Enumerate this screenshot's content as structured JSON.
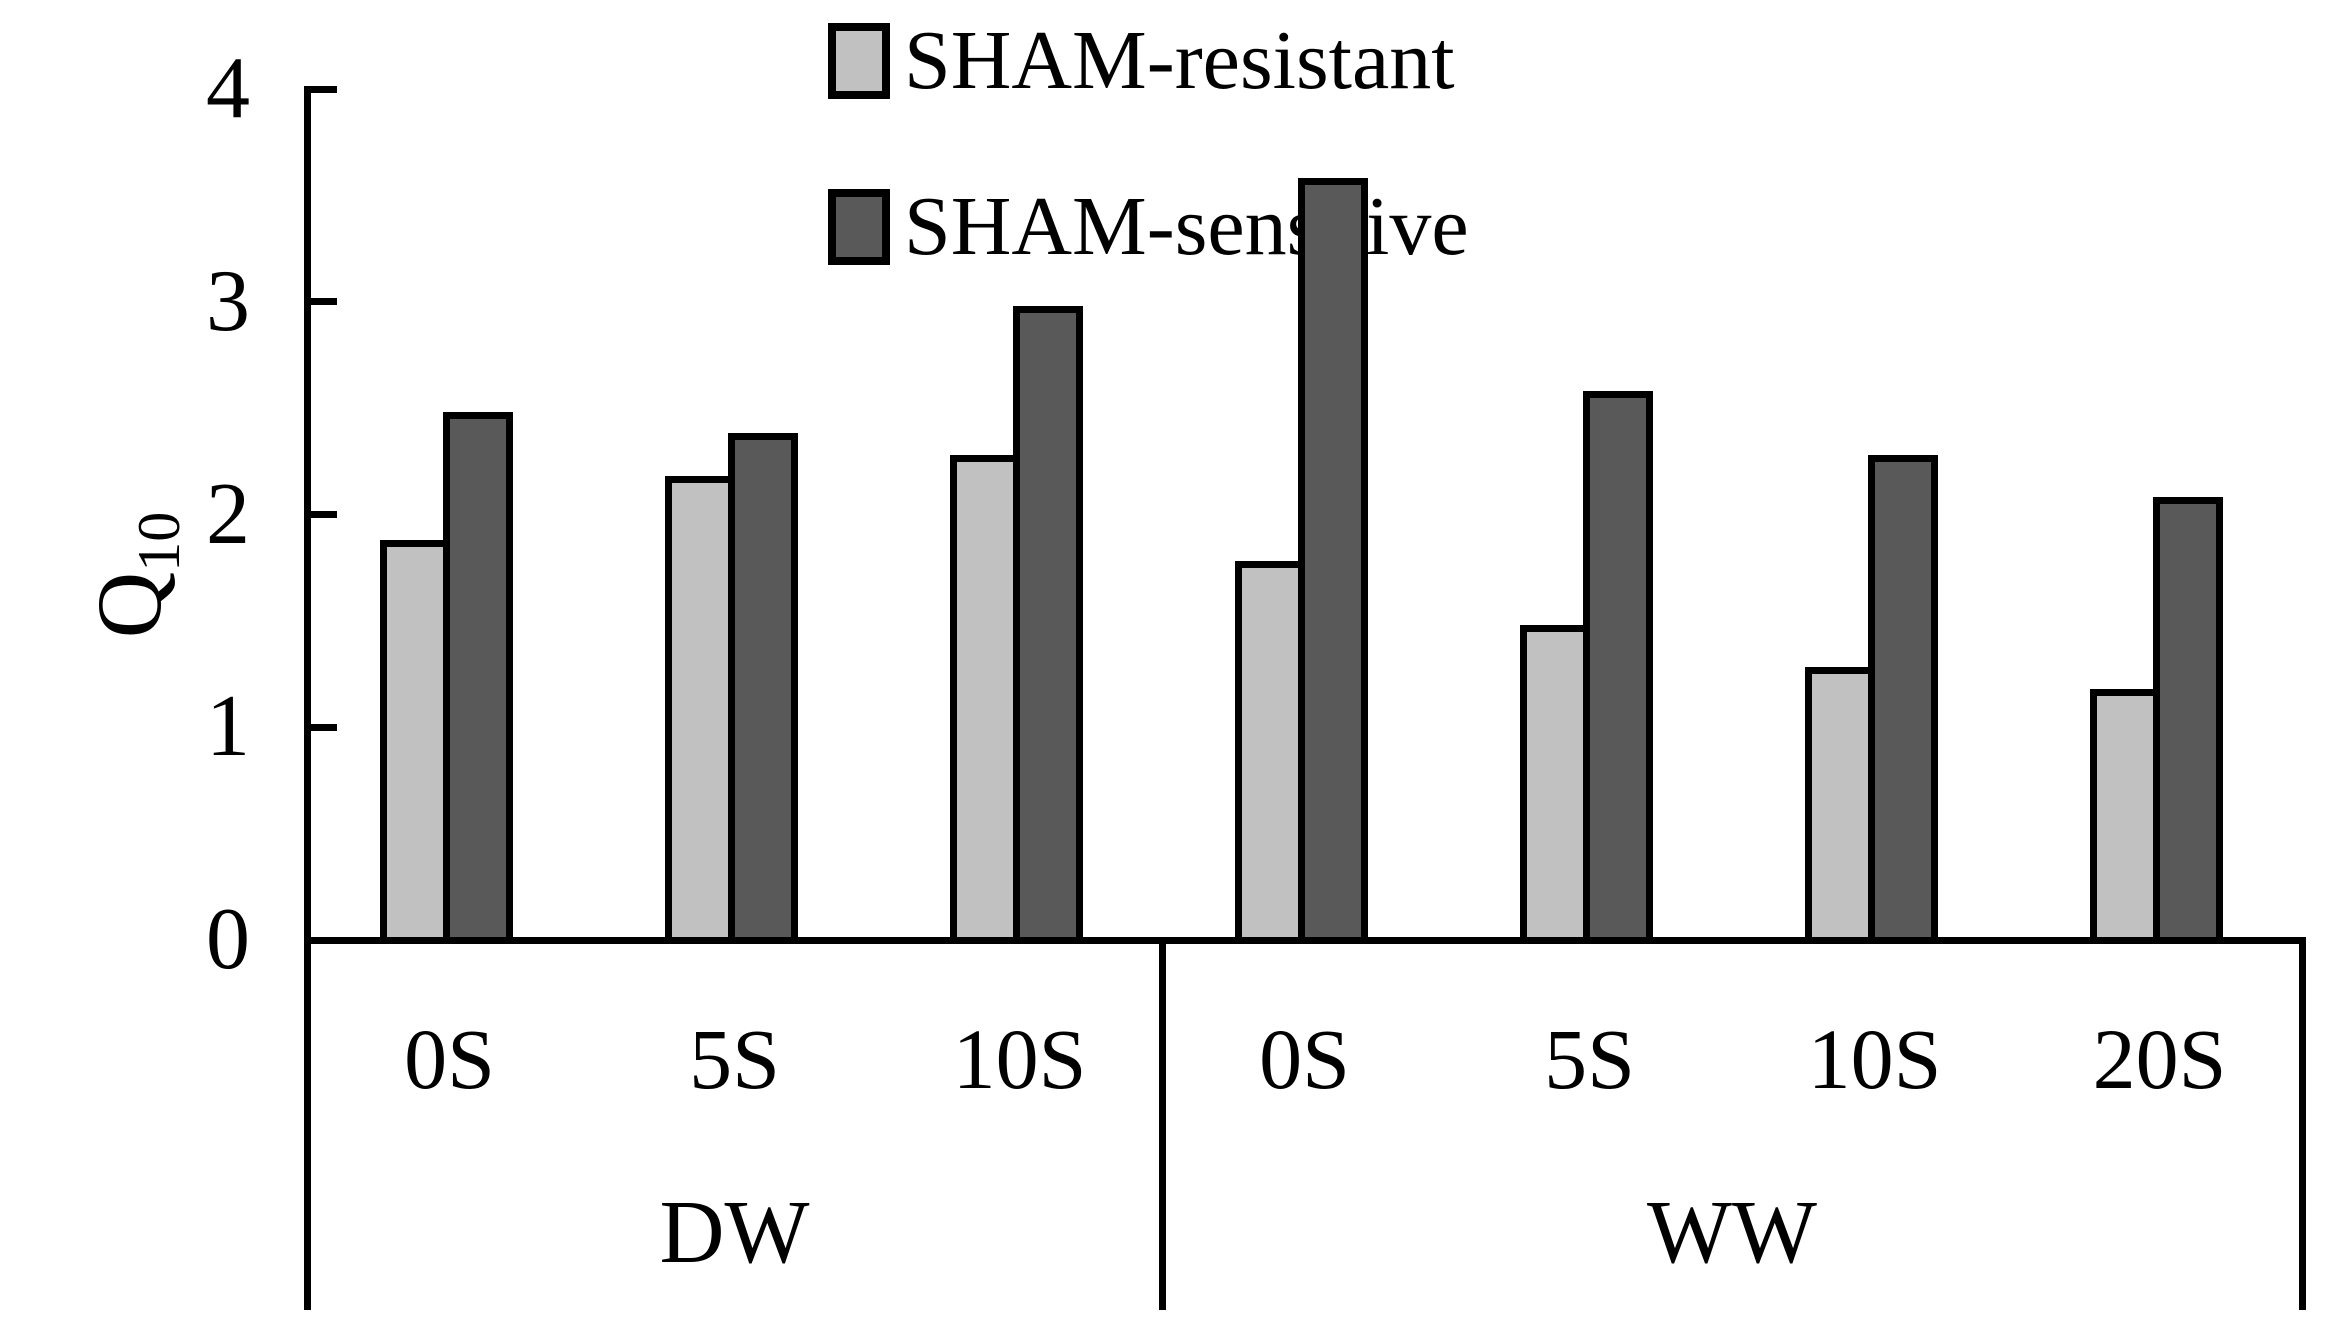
{
  "chart_data": {
    "type": "bar",
    "title": "",
    "ylabel_main": "Q",
    "ylabel_sub": "10",
    "ylim": [
      0,
      4
    ],
    "yticks": [
      0,
      1,
      2,
      3,
      4
    ],
    "categories": [
      "0S",
      "5S",
      "10S",
      "0S",
      "5S",
      "10S",
      "20S"
    ],
    "groups": [
      {
        "label": "DW",
        "span": 3
      },
      {
        "label": "WW",
        "span": 4
      }
    ],
    "series": [
      {
        "name": "SHAM-resistant",
        "color": "#c1c1c1",
        "values": [
          1.9,
          2.2,
          2.3,
          1.8,
          1.5,
          1.3,
          1.2
        ]
      },
      {
        "name": "SHAM-sensitive",
        "color": "#595959",
        "values": [
          2.5,
          2.4,
          3.0,
          3.6,
          2.6,
          2.3,
          2.1
        ]
      }
    ],
    "legend_position": "inside-top",
    "grid": false,
    "axis_color": "#000000",
    "bar_outline_color": "#000000",
    "background": "#ffffff"
  }
}
